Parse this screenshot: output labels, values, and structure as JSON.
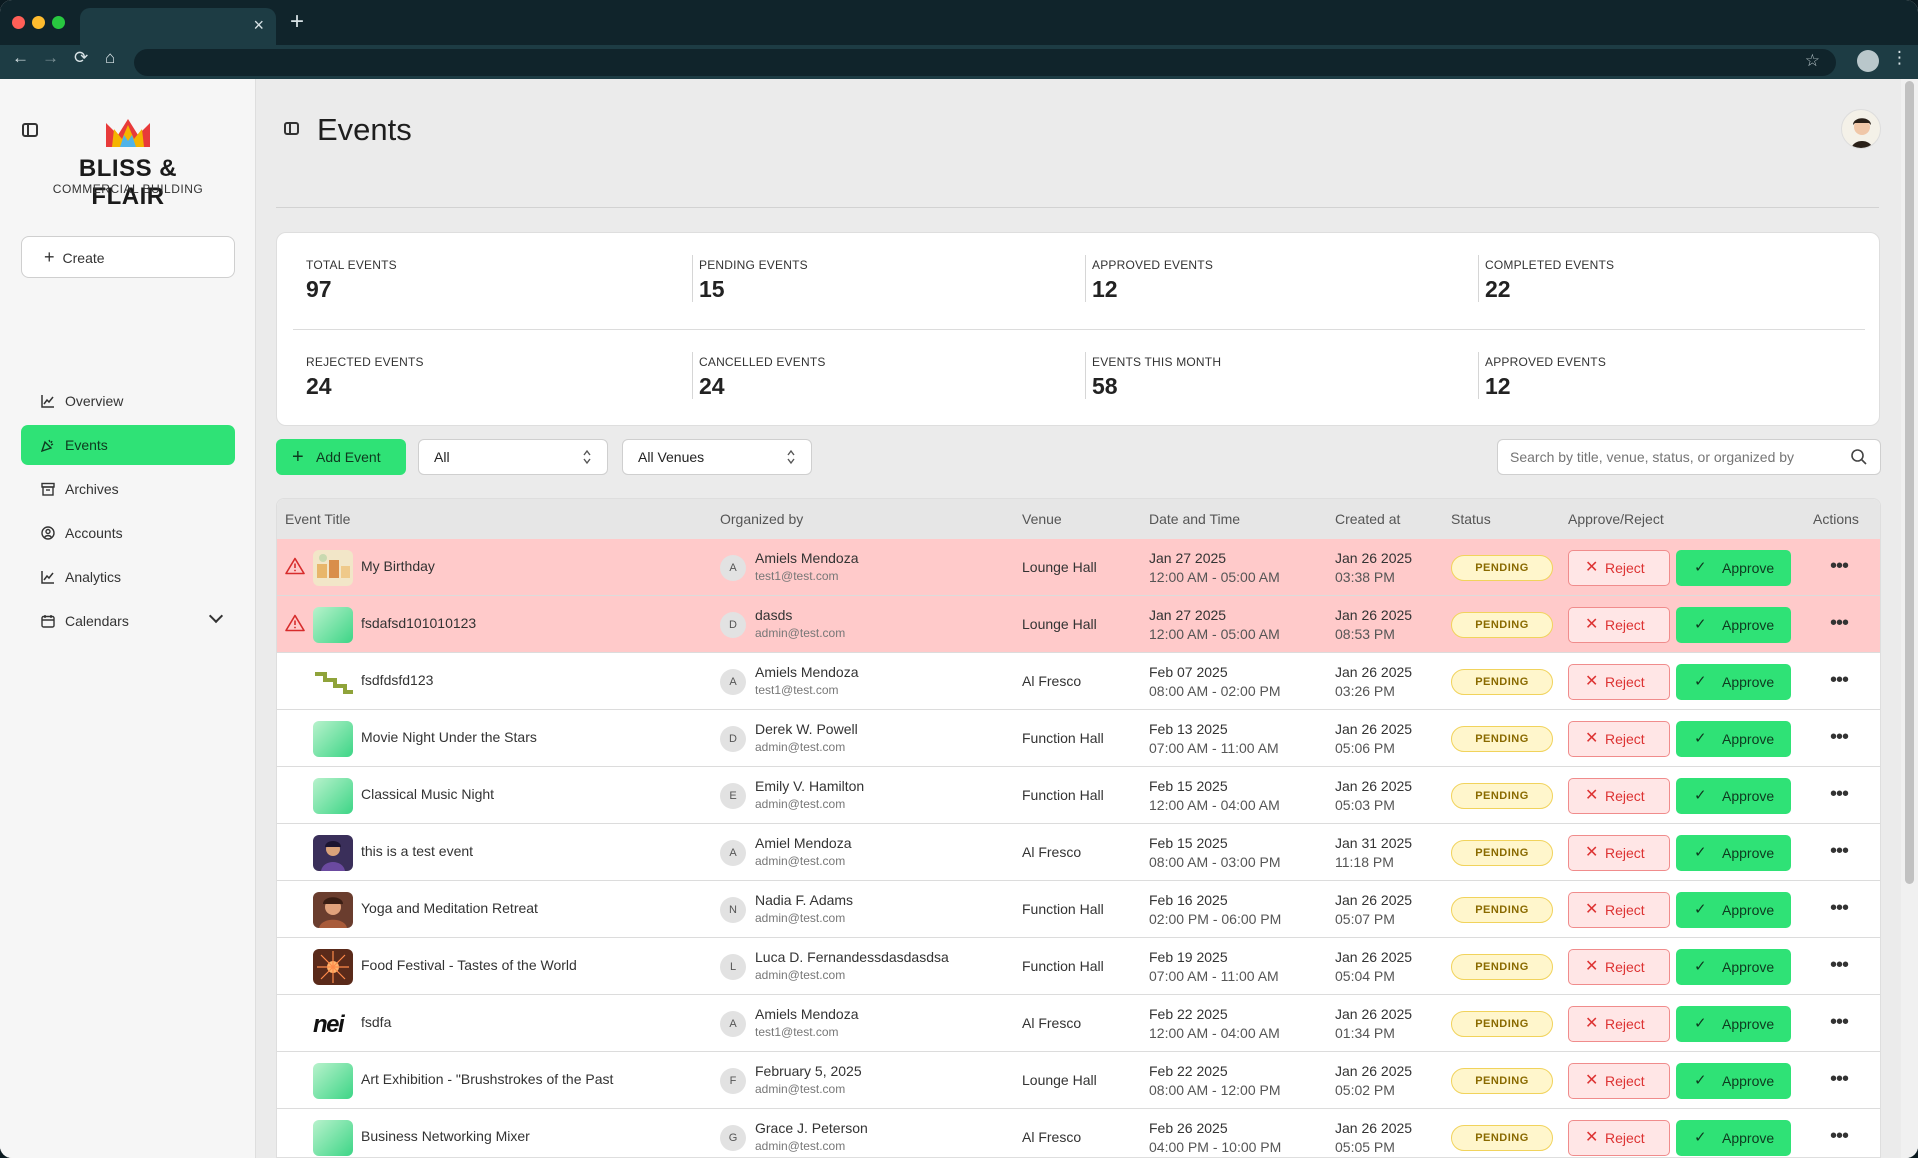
{
  "browser": {
    "tab_close": "×",
    "new_tab": "+",
    "back": "←",
    "forward": "→",
    "reload": "⟳",
    "home": "⌂",
    "star": "☆",
    "menu": "⋮"
  },
  "sidebar": {
    "brand": "BLISS & FLAIR",
    "brand_sub": "COMMERCIAL BUILDING",
    "create_label": "Create",
    "items": [
      {
        "label": "Overview",
        "icon": "line-chart-icon"
      },
      {
        "label": "Events",
        "icon": "party-popper-icon",
        "active": true
      },
      {
        "label": "Archives",
        "icon": "archive-icon"
      },
      {
        "label": "Accounts",
        "icon": "user-circle-icon"
      },
      {
        "label": "Analytics",
        "icon": "line-chart-icon"
      },
      {
        "label": "Calendars",
        "icon": "calendar-icon"
      }
    ]
  },
  "header": {
    "title": "Events"
  },
  "stats": [
    {
      "label": "TOTAL EVENTS",
      "value": "97"
    },
    {
      "label": "PENDING EVENTS",
      "value": "15"
    },
    {
      "label": "APPROVED EVENTS",
      "value": "12"
    },
    {
      "label": "COMPLETED EVENTS",
      "value": "22"
    },
    {
      "label": "REJECTED EVENTS",
      "value": "24"
    },
    {
      "label": "CANCELLED EVENTS",
      "value": "24"
    },
    {
      "label": "EVENTS THIS MONTH",
      "value": "58"
    },
    {
      "label": "APPROVED EVENTS",
      "value": "12"
    }
  ],
  "controls": {
    "add_label": "Add Event",
    "status_filter": "All",
    "venue_filter": "All Venues",
    "search_placeholder": "Search by title, venue, status, or organized by"
  },
  "table": {
    "headers": [
      "Event Title",
      "Organized by",
      "Venue",
      "Date and Time",
      "Created at",
      "Status",
      "Approve/Reject",
      "Actions"
    ],
    "reject_label": "Reject",
    "approve_label": "Approve",
    "actions_glyph": "•••",
    "rows": [
      {
        "title": "My Birthday",
        "initial": "A",
        "org": "Amiels Mendoza",
        "email": "test1@test.com",
        "venue": "Lounge Hall",
        "date": "Jan 27 2025",
        "time": "12:00 AM - 05:00 AM",
        "cdate": "Jan 26 2025",
        "ctime": "03:38 PM",
        "status": "PENDING",
        "alert": true,
        "thumb": "party"
      },
      {
        "title": "fsdafsd101010123",
        "initial": "D",
        "org": "dasds",
        "email": "admin@test.com",
        "venue": "Lounge Hall",
        "date": "Jan 27 2025",
        "time": "12:00 AM - 05:00 AM",
        "cdate": "Jan 26 2025",
        "ctime": "08:53 PM",
        "status": "PENDING",
        "alert": true,
        "thumb": "green"
      },
      {
        "title": "fsdfdsfd123",
        "initial": "A",
        "org": "Amiels Mendoza",
        "email": "test1@test.com",
        "venue": "Al Fresco",
        "date": "Feb 07 2025",
        "time": "08:00 AM - 02:00 PM",
        "cdate": "Jan 26 2025",
        "ctime": "03:26 PM",
        "status": "PENDING",
        "alert": false,
        "thumb": "stairs"
      },
      {
        "title": "Movie Night Under the Stars",
        "initial": "D",
        "org": "Derek W. Powell",
        "email": "admin@test.com",
        "venue": "Function Hall",
        "date": "Feb 13 2025",
        "time": "07:00 AM - 11:00 AM",
        "cdate": "Jan 26 2025",
        "ctime": "05:06 PM",
        "status": "PENDING",
        "alert": false,
        "thumb": "green"
      },
      {
        "title": "Classical Music Night",
        "initial": "E",
        "org": "Emily V. Hamilton",
        "email": "admin@test.com",
        "venue": "Function Hall",
        "date": "Feb 15 2025",
        "time": "12:00 AM - 04:00 AM",
        "cdate": "Jan 26 2025",
        "ctime": "05:03 PM",
        "status": "PENDING",
        "alert": false,
        "thumb": "green"
      },
      {
        "title": "this is a test event",
        "initial": "A",
        "org": "Amiel Mendoza",
        "email": "admin@test.com",
        "venue": "Al Fresco",
        "date": "Feb 15 2025",
        "time": "08:00 AM - 03:00 PM",
        "cdate": "Jan 31 2025",
        "ctime": "11:18 PM",
        "status": "PENDING",
        "alert": false,
        "thumb": "portrait-dark"
      },
      {
        "title": "Yoga and Meditation Retreat",
        "initial": "N",
        "org": "Nadia F. Adams",
        "email": "admin@test.com",
        "venue": "Function Hall",
        "date": "Feb 16 2025",
        "time": "02:00 PM - 06:00 PM",
        "cdate": "Jan 26 2025",
        "ctime": "05:07 PM",
        "status": "PENDING",
        "alert": false,
        "thumb": "portrait-warm"
      },
      {
        "title": "Food Festival - Tastes of the World",
        "initial": "L",
        "org": "Luca D. Fernandessdasdasdsa",
        "email": "admin@test.com",
        "venue": "Function Hall",
        "date": "Feb 19 2025",
        "time": "07:00 AM - 11:00 AM",
        "cdate": "Jan 26 2025",
        "ctime": "05:04 PM",
        "status": "PENDING",
        "alert": false,
        "thumb": "burst"
      },
      {
        "title": "fsdfa",
        "initial": "A",
        "org": "Amiels Mendoza",
        "email": "test1@test.com",
        "venue": "Al Fresco",
        "date": "Feb 22 2025",
        "time": "12:00 AM - 04:00 AM",
        "cdate": "Jan 26 2025",
        "ctime": "01:34 PM",
        "status": "PENDING",
        "alert": false,
        "thumb": "wordmark",
        "thumb_text": "nei"
      },
      {
        "title": "Art Exhibition - \"Brushstrokes of the Past",
        "initial": "F",
        "org": "February 5, 2025",
        "email": "admin@test.com",
        "venue": "Lounge Hall",
        "date": "Feb 22 2025",
        "time": "08:00 AM - 12:00 PM",
        "cdate": "Jan 26 2025",
        "ctime": "05:02 PM",
        "status": "PENDING",
        "alert": false,
        "thumb": "green"
      },
      {
        "title": "Business Networking Mixer",
        "initial": "G",
        "org": "Grace J. Peterson",
        "email": "admin@test.com",
        "venue": "Al Fresco",
        "date": "Feb 26 2025",
        "time": "04:00 PM - 10:00 PM",
        "cdate": "Jan 26 2025",
        "ctime": "05:05 PM",
        "status": "PENDING",
        "alert": false,
        "thumb": "green"
      }
    ]
  },
  "colors": {
    "accent": "#2fe276",
    "alert_row": "#ffcaca",
    "pending_badge": "#fff6cc",
    "reject": "#d33333"
  }
}
